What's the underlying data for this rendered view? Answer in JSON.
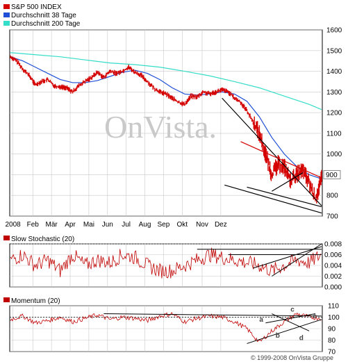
{
  "watermark": "OnVista.",
  "copyright": "© 1999-2008 OnVista Gruppe",
  "colors": {
    "price": "#d40000",
    "ma38": "#1e4fd6",
    "ma200": "#33ddc8",
    "trend_black": "#000000",
    "trend_red": "#d40000",
    "grid": "#c8c8c8",
    "indicator": "#c00000"
  },
  "chart_data": [
    {
      "type": "line",
      "title": "",
      "legend_position": "top-left",
      "grid": true,
      "series": [
        {
          "name": "S&P 500 INDEX",
          "style": "ohlc-bars",
          "x": [
            0,
            5,
            10,
            15,
            20,
            25,
            30,
            35,
            40,
            45,
            50,
            55,
            60,
            65,
            70,
            75,
            80,
            85,
            90,
            95,
            100,
            105,
            110,
            115,
            120,
            125,
            130,
            135,
            140,
            145,
            150,
            155,
            160,
            165,
            170,
            175,
            180,
            185,
            190,
            195,
            200,
            205,
            210,
            215,
            220,
            225,
            230,
            235,
            240,
            245,
            250
          ],
          "values": [
            1470,
            1450,
            1411,
            1380,
            1335,
            1350,
            1360,
            1330,
            1325,
            1320,
            1300,
            1330,
            1350,
            1370,
            1395,
            1370,
            1400,
            1390,
            1400,
            1420,
            1395,
            1380,
            1350,
            1320,
            1300,
            1290,
            1270,
            1250,
            1240,
            1280,
            1275,
            1300,
            1290,
            1300,
            1310,
            1300,
            1270,
            1250,
            1210,
            1155,
            1100,
            1000,
            900,
            950,
            940,
            870,
            900,
            920,
            860,
            780,
            880
          ]
        },
        {
          "name": "Durchschnitt 38 Tage",
          "x": [
            0,
            10,
            20,
            30,
            40,
            50,
            60,
            70,
            80,
            90,
            100,
            110,
            120,
            130,
            140,
            150,
            160,
            170,
            180,
            190,
            200,
            210,
            220,
            230,
            240,
            250
          ],
          "values": [
            1470,
            1450,
            1420,
            1390,
            1360,
            1345,
            1345,
            1355,
            1375,
            1395,
            1405,
            1390,
            1360,
            1320,
            1290,
            1285,
            1290,
            1300,
            1290,
            1255,
            1180,
            1080,
            1000,
            940,
            900,
            880
          ]
        },
        {
          "name": "Durchschnitt 200 Tage",
          "x": [
            0,
            20,
            40,
            60,
            80,
            100,
            120,
            140,
            160,
            180,
            200,
            220,
            240,
            250
          ],
          "values": [
            1490,
            1480,
            1470,
            1455,
            1440,
            1432,
            1420,
            1400,
            1378,
            1350,
            1320,
            1280,
            1240,
            1215
          ]
        }
      ],
      "trendlines": [
        {
          "color": "black",
          "points": [
            [
              170,
              1270
            ],
            [
              250,
              750
            ]
          ]
        },
        {
          "color": "black",
          "points": [
            [
              172,
              850
            ],
            [
              250,
              715
            ]
          ]
        },
        {
          "color": "black",
          "points": [
            [
              190,
              840
            ],
            [
              250,
              745
            ]
          ]
        },
        {
          "color": "black",
          "points": [
            [
              210,
              820
            ],
            [
              235,
              910
            ]
          ]
        },
        {
          "color": "red",
          "points": [
            [
              185,
              1060
            ],
            [
              250,
              885
            ]
          ]
        }
      ],
      "x_tick_labels": [
        "2008",
        "Feb",
        "Mär",
        "Apr",
        "Mai",
        "Jun",
        "Jul",
        "Aug",
        "Sep",
        "Okt",
        "Nov",
        "Dez"
      ],
      "x_tick_positions": [
        2,
        18,
        33,
        48,
        63,
        78,
        93,
        108,
        123,
        138,
        154,
        169
      ],
      "y_ticks": [
        700,
        800,
        900,
        1000,
        1100,
        1200,
        1300,
        1400,
        1500,
        1600
      ],
      "ylim": [
        700,
        1600
      ],
      "last_value_label": "900"
    },
    {
      "type": "line",
      "title": "Slow Stochastic (20)",
      "grid": true,
      "series": [
        {
          "name": "Slow Stochastic (20)",
          "x": [
            0,
            10,
            20,
            30,
            40,
            50,
            60,
            70,
            80,
            90,
            100,
            110,
            120,
            130,
            140,
            150,
            160,
            170,
            180,
            190,
            200,
            210,
            220,
            230,
            240,
            250
          ],
          "values": [
            0.005,
            0.006,
            0.004,
            0.005,
            0.003,
            0.006,
            0.004,
            0.005,
            0.0045,
            0.006,
            0.0055,
            0.004,
            0.003,
            0.003,
            0.004,
            0.005,
            0.006,
            0.0055,
            0.005,
            0.0045,
            0.004,
            0.003,
            0.004,
            0.005,
            0.0045,
            0.006
          ]
        }
      ],
      "y_ticks": [
        "0.000",
        "0.002",
        "0.004",
        "0.006",
        "0.008"
      ],
      "ylim": [
        0,
        0.008
      ]
    },
    {
      "type": "line",
      "title": "Momentum (20)",
      "grid": true,
      "series": [
        {
          "name": "Momentum (20)",
          "x": [
            0,
            10,
            20,
            30,
            40,
            50,
            60,
            70,
            80,
            90,
            100,
            110,
            120,
            130,
            140,
            150,
            160,
            170,
            180,
            190,
            200,
            210,
            220,
            230,
            240,
            250
          ],
          "values": [
            98,
            101,
            95,
            97,
            100,
            96,
            99,
            102,
            98,
            100,
            99,
            97,
            101,
            103,
            96,
            99,
            101,
            100,
            96,
            90,
            78,
            88,
            96,
            103,
            100,
            99
          ]
        }
      ],
      "annotations": [
        "a",
        "b",
        "c",
        "d",
        "e"
      ],
      "y_ticks": [
        70,
        80,
        90,
        100,
        110
      ],
      "ylim": [
        70,
        110
      ]
    }
  ]
}
